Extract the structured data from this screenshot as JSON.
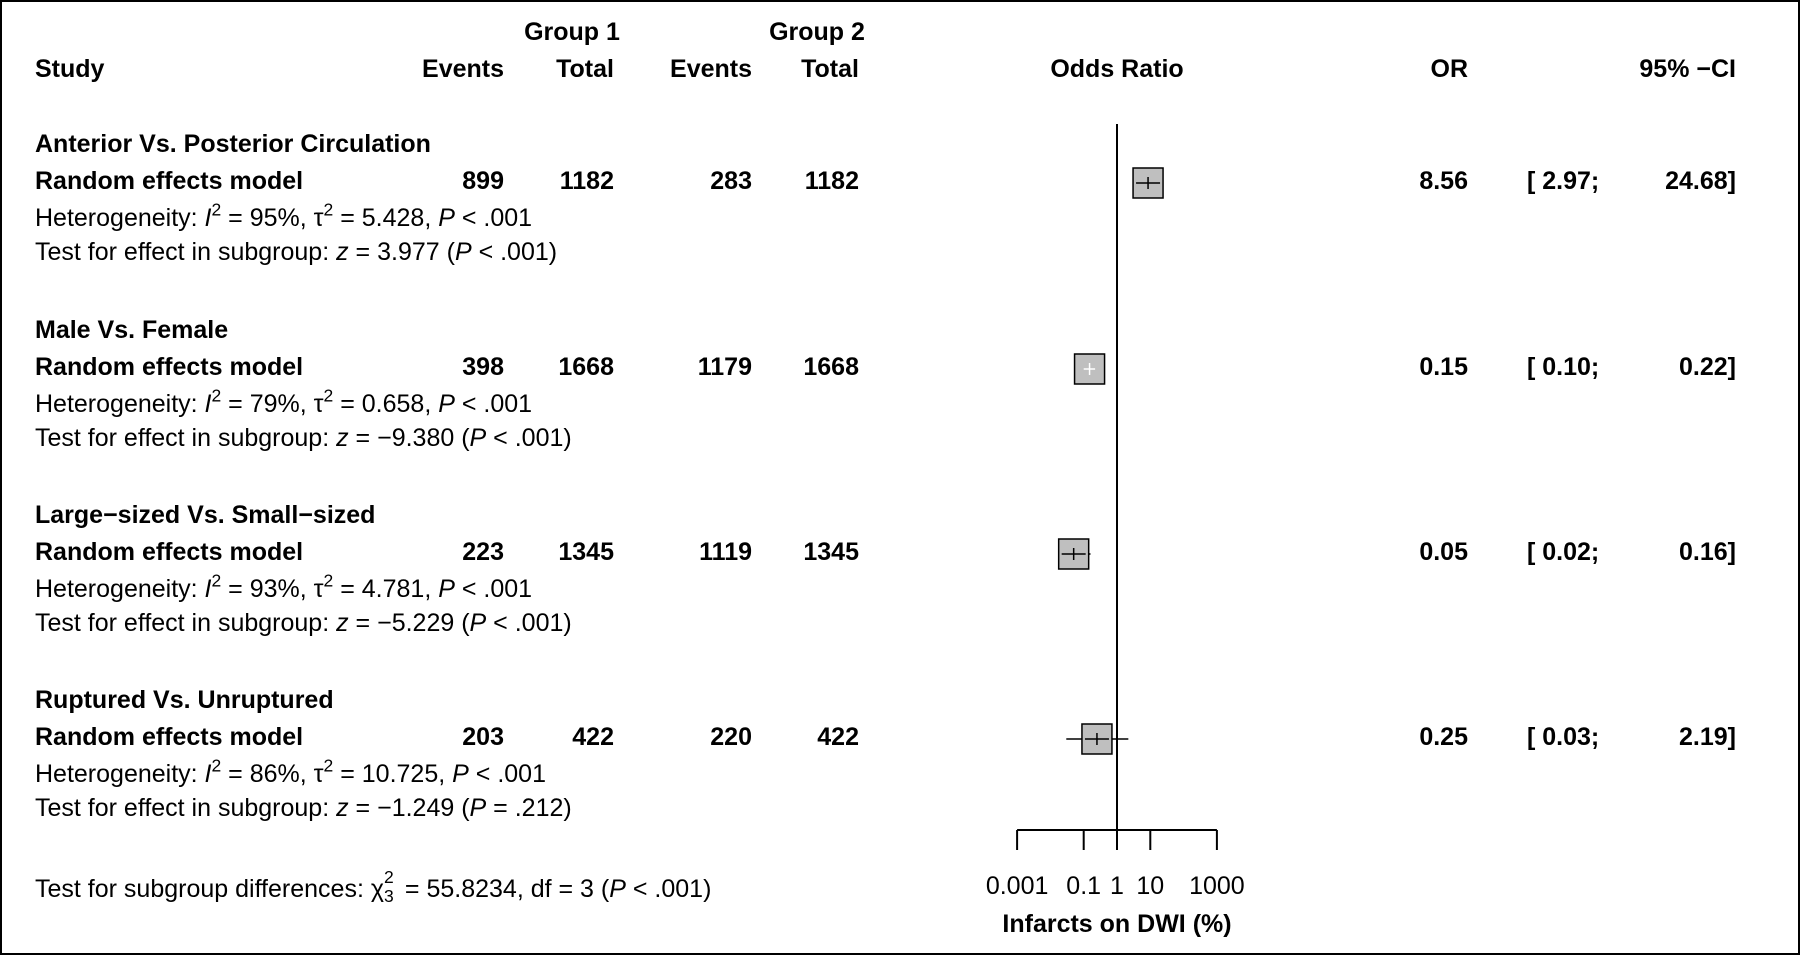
{
  "header": {
    "group1": "Group 1",
    "group2": "Group 2",
    "study": "Study",
    "events1": "Events",
    "total1": "Total",
    "events2": "Events",
    "total2": "Total",
    "odds_ratio": "Odds Ratio",
    "or": "OR",
    "ci": "95% −CI"
  },
  "subgroups": [
    {
      "title": "Anterior Vs. Posterior Circulation",
      "model": "Random effects model",
      "ev1": "899",
      "tot1": "1182",
      "ev2": "283",
      "tot2": "1182",
      "or": "8.56",
      "ci_lo": "[ 2.97;",
      "ci_hi": "24.68]",
      "het_prefix": "Heterogeneity: ",
      "het_i2_sym": "I",
      "het_i2_exp": "2",
      "het_i2_val": " = 95%, ",
      "het_tau_sym": "τ",
      "het_tau_exp": "2",
      "het_tau_val": " = 5.428, ",
      "het_p_sym": "P",
      "het_p_val": " < .001",
      "test_prefix": "Test for effect in subgroup: ",
      "test_z_sym": "z",
      "test_z_val": " = 3.977 (",
      "test_p_sym": "P",
      "test_p_val": " < .001)"
    },
    {
      "title": "Male Vs. Female",
      "model": "Random effects model",
      "ev1": "398",
      "tot1": "1668",
      "ev2": "1179",
      "tot2": "1668",
      "or": "0.15",
      "ci_lo": "[ 0.10;",
      "ci_hi": "0.22]",
      "het_prefix": "Heterogeneity: ",
      "het_i2_sym": "I",
      "het_i2_exp": "2",
      "het_i2_val": " = 79%, ",
      "het_tau_sym": "τ",
      "het_tau_exp": "2",
      "het_tau_val": " = 0.658, ",
      "het_p_sym": "P",
      "het_p_val": " < .001",
      "test_prefix": "Test for effect in subgroup: ",
      "test_z_sym": "z",
      "test_z_val": " = −9.380 (",
      "test_p_sym": "P",
      "test_p_val": " < .001)"
    },
    {
      "title": "Large−sized Vs. Small−sized",
      "model": "Random effects model",
      "ev1": "223",
      "tot1": "1345",
      "ev2": "1119",
      "tot2": "1345",
      "or": "0.05",
      "ci_lo": "[ 0.02;",
      "ci_hi": "0.16]",
      "het_prefix": "Heterogeneity: ",
      "het_i2_sym": "I",
      "het_i2_exp": "2",
      "het_i2_val": " = 93%, ",
      "het_tau_sym": "τ",
      "het_tau_exp": "2",
      "het_tau_val": " = 4.781, ",
      "het_p_sym": "P",
      "het_p_val": " < .001",
      "test_prefix": "Test for effect in subgroup: ",
      "test_z_sym": "z",
      "test_z_val": " = −5.229 (",
      "test_p_sym": "P",
      "test_p_val": " < .001)"
    },
    {
      "title": "Ruptured Vs. Unruptured",
      "model": "Random effects model",
      "ev1": "203",
      "tot1": "422",
      "ev2": "220",
      "tot2": "422",
      "or": "0.25",
      "ci_lo": "[ 0.03;",
      "ci_hi": "2.19]",
      "het_prefix": "Heterogeneity: ",
      "het_i2_sym": "I",
      "het_i2_exp": "2",
      "het_i2_val": " = 86%, ",
      "het_tau_sym": "τ",
      "het_tau_exp": "2",
      "het_tau_val": " = 10.725, ",
      "het_p_sym": "P",
      "het_p_val": " < .001",
      "test_prefix": "Test for effect in subgroup: ",
      "test_z_sym": "z",
      "test_z_val": " = −1.249 (",
      "test_p_sym": "P",
      "test_p_val": " = .212)"
    }
  ],
  "footer": {
    "prefix": "Test for subgroup differences: ",
    "chi_sym": "χ",
    "chi_sup": "2",
    "chi_sub": "3",
    "chi_val": " = 55.8234, df = 3 (",
    "p_sym": "P",
    "p_val": " < .001)"
  },
  "chart_data": {
    "type": "forest",
    "x_scale": "log10",
    "xlim": [
      0.001,
      1000
    ],
    "x_ticks": [
      0.001,
      0.1,
      1,
      10,
      1000
    ],
    "x_tick_labels": [
      "0.001",
      "0.1",
      "1",
      "10",
      "1000"
    ],
    "xlabel": "Infarcts on DWI (%)",
    "reference_line": 1,
    "box_color": "#bfbfbf",
    "series": [
      {
        "name": "Anterior Vs. Posterior Circulation",
        "or": 8.56,
        "ci": [
          2.97,
          24.68
        ]
      },
      {
        "name": "Male Vs. Female",
        "or": 0.15,
        "ci": [
          0.1,
          0.22
        ]
      },
      {
        "name": "Large−sized Vs. Small−sized",
        "or": 0.05,
        "ci": [
          0.02,
          0.16
        ]
      },
      {
        "name": "Ruptured Vs. Unruptured",
        "or": 0.25,
        "ci": [
          0.03,
          2.19
        ]
      }
    ]
  }
}
